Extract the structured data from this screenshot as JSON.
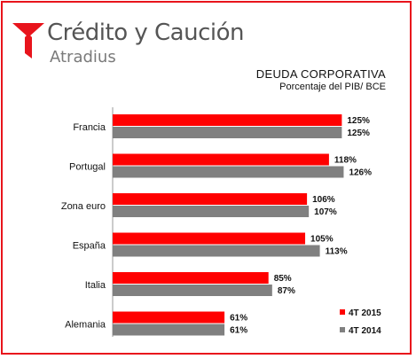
{
  "brand": {
    "name": "Crédito y Caución",
    "sub": "Atradius"
  },
  "colors": {
    "s1": "#ff0000",
    "s2": "#808080",
    "frame": "#e8141c",
    "brand_red": "#e8141c"
  },
  "chart_data": {
    "type": "bar",
    "orientation": "horizontal",
    "title": "DEUDA  CORPORATIVA",
    "subtitle": "Porcentaje del PIB/ BCE",
    "categories": [
      "Francia",
      "Portugal",
      "Zona euro",
      "España",
      "Italia",
      "Alemania"
    ],
    "series": [
      {
        "name": "4T 2015",
        "color": "#ff0000",
        "values": [
          125,
          118,
          106,
          105,
          85,
          61
        ],
        "labels": [
          "125%",
          "118%",
          "106%",
          "105%",
          "85%",
          "61%"
        ]
      },
      {
        "name": "4T 2014",
        "color": "#808080",
        "values": [
          125,
          126,
          107,
          113,
          87,
          61
        ],
        "labels": [
          "125%",
          "126%",
          "107%",
          "113%",
          "87%",
          "61%"
        ]
      }
    ],
    "xlim": [
      0,
      130
    ],
    "grid": false,
    "legend": "bottom-right"
  }
}
